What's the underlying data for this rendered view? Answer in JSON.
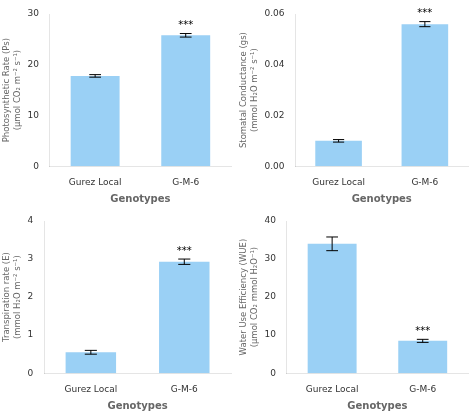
{
  "chart_data": [
    {
      "type": "bar",
      "ylabel": "Photosynthetic Rate (Ps)\n(μmol CO₂ m⁻² s⁻¹)",
      "xlabel": "Genotypes",
      "categories": [
        "Gurez Local",
        "G-M-6"
      ],
      "values": [
        17.8,
        25.8
      ],
      "errors": [
        0.25,
        0.35
      ],
      "ylim": [
        0,
        30
      ],
      "yticks": [
        0,
        10,
        20,
        30
      ],
      "annotations": [
        {
          "category": "G-M-6",
          "text": "***"
        }
      ],
      "grid": false
    },
    {
      "type": "bar",
      "ylabel": "Stomatal Conductance (gs)\n(mmol H₂O m⁻² s⁻¹)",
      "xlabel": "Genotypes",
      "categories": [
        "Gurez Local",
        "G-M-6"
      ],
      "values": [
        0.01,
        0.056
      ],
      "errors": [
        0.0005,
        0.001
      ],
      "ylim": [
        0,
        0.06
      ],
      "yticks": [
        {
          "value": 0,
          "label": "0.00"
        },
        {
          "value": 0.02,
          "label": "0.02"
        },
        {
          "value": 0.04,
          "label": "0.04"
        },
        {
          "value": 0.06,
          "label": "0.06"
        }
      ],
      "annotations": [
        {
          "category": "G-M-6",
          "text": "***"
        }
      ],
      "grid": false
    },
    {
      "type": "bar",
      "ylabel": "Transpiration rate (E)\n(mmol H₂O m⁻² s⁻¹)",
      "xlabel": "Genotypes",
      "categories": [
        "Gurez Local",
        "G-M-6"
      ],
      "values": [
        0.55,
        2.93
      ],
      "errors": [
        0.05,
        0.07
      ],
      "ylim": [
        0,
        4
      ],
      "yticks": [
        0,
        1,
        2,
        3,
        4
      ],
      "annotations": [
        {
          "category": "G-M-6",
          "text": "***"
        }
      ],
      "grid": false
    },
    {
      "type": "bar",
      "ylabel": "Water Use Efficiency (WUE)\n(μmol CO₂ mmol H₂O⁻¹)",
      "xlabel": "Genotypes",
      "categories": [
        "Gurez Local",
        "G-M-6"
      ],
      "values": [
        34.0,
        8.5
      ],
      "errors": [
        1.8,
        0.4
      ],
      "ylim": [
        0,
        40
      ],
      "yticks": [
        0,
        10,
        20,
        30,
        40
      ],
      "annotations": [
        {
          "category": "G-M-6",
          "text": "***"
        }
      ],
      "grid": false
    }
  ]
}
